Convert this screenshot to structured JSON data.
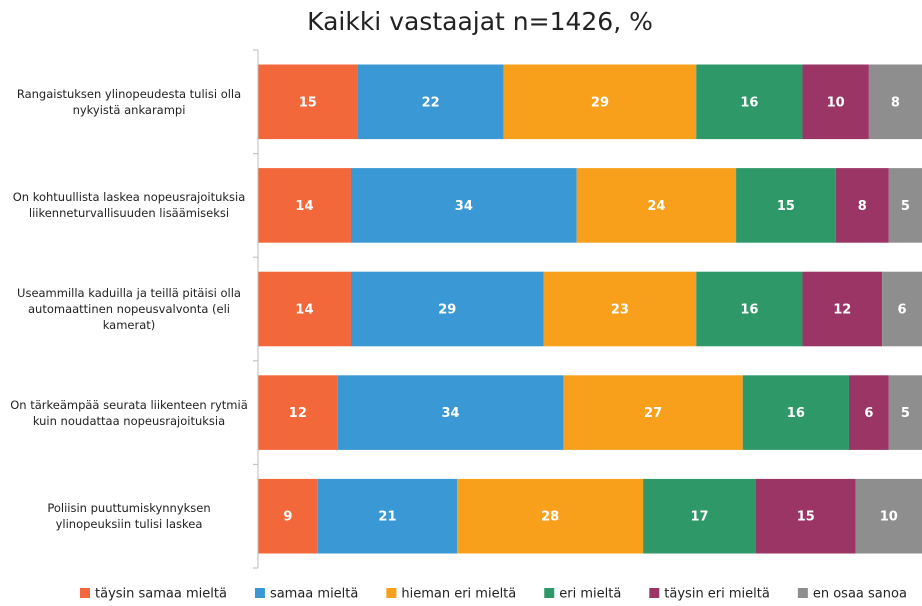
{
  "chart_data": {
    "type": "bar",
    "orientation": "horizontal",
    "stacked": true,
    "title": "Kaikki vastaajat n=1426, %",
    "categories": [
      "Rangaistuksen ylinopeudesta tulisi olla nykyistä ankarampi",
      "On kohtuullista laskea nopeusrajoituksia liikenneturvallisuuden lisäämiseksi",
      "Useammilla kaduilla ja teillä pitäisi olla automaattinen nopeusvalvonta (eli kamerat)",
      "On tärkeämpää seurata liikenteen rytmiä kuin noudattaa nopeusrajoituksia",
      "Poliisin puuttumiskynnyksen ylinopeuksiin tulisi laskea"
    ],
    "series": [
      {
        "name": "täysin samaa mieltä",
        "color": "#f2683a",
        "values": [
          15,
          14,
          14,
          12,
          9
        ]
      },
      {
        "name": "samaa mieltä",
        "color": "#3a98d4",
        "values": [
          22,
          34,
          29,
          34,
          21
        ]
      },
      {
        "name": "hieman eri mieltä",
        "color": "#f8a01c",
        "values": [
          29,
          24,
          23,
          27,
          28
        ]
      },
      {
        "name": "eri mieltä",
        "color": "#2f9868",
        "values": [
          16,
          15,
          16,
          16,
          17
        ]
      },
      {
        "name": "täysin eri mieltä",
        "color": "#9b3566",
        "values": [
          10,
          8,
          12,
          6,
          15
        ]
      },
      {
        "name": "en osaa sanoa",
        "color": "#8e8e8e",
        "values": [
          8,
          5,
          6,
          5,
          10
        ]
      }
    ],
    "xlim": [
      0,
      100
    ],
    "legend": "bottom"
  }
}
